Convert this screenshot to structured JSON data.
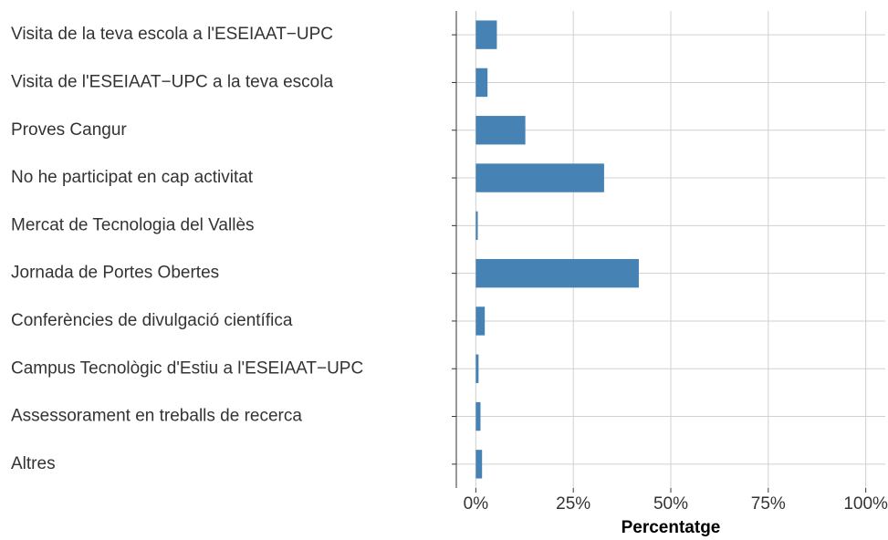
{
  "chart_data": {
    "type": "bar",
    "orientation": "horizontal",
    "x_label": "Percentatge",
    "categories": [
      "Visita de la teva escola a l'ESEIAAT−UPC",
      "Visita de l'ESEIAAT−UPC a la teva escola",
      "Proves Cangur",
      "No he participat en cap activitat",
      "Mercat de Tecnologia del Vallès",
      "Jornada de Portes Obertes",
      "Conferències de divulgació científica",
      "Campus Tecnològic d'Estiu a l'ESEIAAT−UPC",
      "Assessorament en treballs de recerca",
      "Altres"
    ],
    "values": [
      5.4,
      3.0,
      12.7,
      32.9,
      0.5,
      41.8,
      2.3,
      0.7,
      1.2,
      1.6
    ],
    "color": "#4682b4",
    "xlim": [
      -5,
      105
    ],
    "xticks": [
      {
        "value": 0,
        "label": "0%"
      },
      {
        "value": 25,
        "label": "25%"
      },
      {
        "value": 50,
        "label": "50%"
      },
      {
        "value": 75,
        "label": "75%"
      },
      {
        "value": 100,
        "label": "100%"
      }
    ],
    "grid": true
  }
}
